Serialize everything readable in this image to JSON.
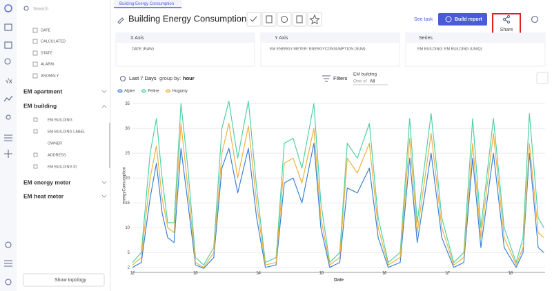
{
  "sidebar": {
    "search": "Search",
    "fields": [
      "DATE",
      "CALCULATED",
      "STATE",
      "ALARM",
      "ANOMALY"
    ],
    "groups": [
      {
        "name": "EM apartment"
      },
      {
        "name": "EM building",
        "fields": [
          "EM BUILDING",
          "EM BUILDING LABEL",
          "OWNER",
          "ADDRESS",
          "EM BUILDING ID"
        ]
      },
      {
        "name": "EM energy meter"
      },
      {
        "name": "EM heat meter"
      }
    ],
    "button": "Show topology"
  },
  "tab": "Building Energy Consumption",
  "header": {
    "title": "Building Energy Consumption",
    "see_task": "See task",
    "build_report": "Build report",
    "tooltip": "Share"
  },
  "panels": [
    {
      "title": "X Axis",
      "item": "DATE (RAW)"
    },
    {
      "title": "Y Axis",
      "item": "EM ENERGY METER: ENERGYCONSUMPTION (SUM)"
    },
    {
      "title": "Series",
      "item": "EM BUILDING: EM BUILDING (UNIQ)"
    }
  ],
  "controls": {
    "period": "Last 7 Days",
    "group_by_label": "group by:",
    "group_by": "hour",
    "filters": "Filters",
    "filter_name": "EM building",
    "filter_op": "One of",
    "filter_value": "All"
  },
  "chart_data": {
    "type": "line",
    "x_label": "Date",
    "y_label": "energyConsumption",
    "x": [
      12.0,
      12.14,
      12.28,
      12.38,
      12.47,
      12.56,
      12.66,
      12.77,
      12.88,
      13.0,
      13.13,
      13.29,
      13.42,
      13.53,
      13.67,
      13.84,
      13.97,
      14.11,
      14.28,
      14.41,
      14.55,
      14.69,
      14.88,
      14.99,
      15.13,
      15.29,
      15.41,
      15.57,
      15.76,
      15.9,
      16.06,
      16.25,
      16.4,
      16.52,
      16.74,
      16.91,
      17.1,
      17.26,
      17.4,
      17.53,
      17.73,
      17.9,
      18.09,
      18.2,
      18.3,
      18.44,
      18.53
    ],
    "series": [
      {
        "name": "Alpire",
        "color": "#3b82d6",
        "values": [
          2,
          3,
          16,
          23,
          13,
          8,
          7,
          26,
          15,
          2.5,
          1.8,
          4,
          22,
          26,
          17,
          26,
          12,
          2,
          2.5,
          19,
          20,
          15,
          27,
          10,
          2,
          3,
          18,
          17,
          22,
          8,
          2,
          3,
          24,
          7,
          25,
          8,
          2,
          3,
          24,
          6,
          25,
          6,
          2,
          5,
          25,
          6,
          5
        ]
      },
      {
        "name": "Feline",
        "color": "#4fd1a5",
        "values": [
          3,
          5,
          25,
          32,
          20,
          11,
          11,
          35,
          22,
          4,
          2.5,
          6,
          30,
          35.5,
          24,
          35.5,
          18,
          3,
          4,
          27,
          28,
          22,
          35,
          15,
          3,
          5,
          27,
          24,
          31,
          12,
          3,
          5,
          32,
          11,
          33,
          12,
          3,
          5,
          32,
          10,
          32,
          10,
          3,
          8,
          33,
          12,
          10
        ]
      },
      {
        "name": "Hoguniy",
        "color": "#f0b040",
        "values": [
          2.5,
          4,
          20,
          26.5,
          16,
          10,
          9,
          31,
          18,
          3,
          2,
          5,
          25,
          31,
          20,
          30.5,
          15,
          2.5,
          3,
          23,
          24,
          19,
          30,
          12,
          2.5,
          4,
          24,
          21,
          27,
          10,
          2.5,
          4,
          28,
          9,
          29,
          10,
          2.5,
          4,
          27,
          8,
          29,
          8,
          2.5,
          6,
          27,
          9,
          8
        ]
      }
    ],
    "xlim": [
      12,
      18.55
    ],
    "ylim": [
      1,
      36
    ],
    "xticks": [
      12,
      13,
      14,
      15,
      16,
      17,
      18
    ],
    "yticks": [
      2,
      5,
      10,
      15,
      20,
      25,
      30,
      35
    ],
    "grid": true,
    "legend": "top-left"
  }
}
